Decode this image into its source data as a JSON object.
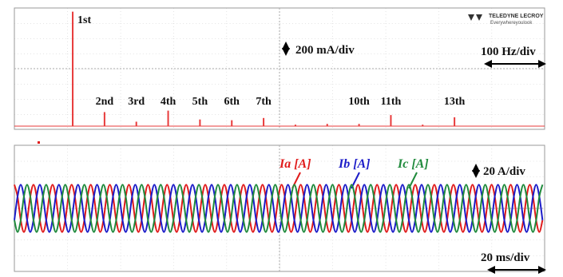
{
  "logo": {
    "brand": "TELEDYNE LECROY",
    "tagline": "Everywhereyoulook"
  },
  "chart_data": [
    {
      "type": "bar",
      "y_scale": "200 mA/div",
      "x_scale": "100 Hz/div",
      "color": "#e83a3a",
      "categories": [
        "1st",
        "2nd",
        "3rd",
        "4th",
        "5th",
        "6th",
        "7th",
        null,
        null,
        "10th",
        "11th",
        null,
        "13th"
      ],
      "x": [
        60,
        120,
        180,
        240,
        300,
        360,
        420,
        480,
        540,
        600,
        660,
        720,
        780
      ],
      "values": [
        1550,
        190,
        60,
        210,
        90,
        80,
        110,
        20,
        30,
        30,
        150,
        20,
        120
      ],
      "xlim": [
        -50,
        950
      ],
      "ylim": [
        0,
        1600
      ]
    },
    {
      "type": "line",
      "y_scale": "20 A/div",
      "x_scale": "20 ms/div",
      "xlim": [
        0,
        200
      ],
      "ylim": [
        -80,
        80
      ],
      "x": [
        0,
        1.2,
        2.4,
        3.6,
        4.8,
        6,
        7.2,
        8.4,
        9.6,
        10.8,
        12,
        13.2,
        14.4,
        15.6,
        16.8,
        18,
        19.2,
        20.4,
        21.6,
        22.8,
        24,
        25.2,
        26.4,
        27.6,
        28.8,
        30,
        31.2,
        32.4,
        33.6,
        34.8,
        36,
        37.2,
        38.4,
        39.6,
        40.8,
        42,
        43.2,
        44.4,
        45.6,
        46.8,
        48,
        49.2,
        50.4,
        51.6,
        52.8,
        54,
        55.2,
        56.4,
        57.6,
        58.8,
        60,
        61.2,
        62.4,
        63.6,
        64.8,
        66,
        67.2,
        68.4,
        69.6,
        70.8,
        72,
        73.2,
        74.4,
        75.6,
        76.8,
        78,
        79.2,
        80.4,
        81.6,
        82.8,
        84,
        85.2,
        86.4,
        87.6,
        88.8,
        90,
        91.2,
        92.4,
        93.6,
        94.8,
        96,
        97.2,
        98.4,
        99.6,
        100.8,
        102,
        103.2,
        104.4,
        105.6,
        106.8,
        108,
        109.2,
        110.4,
        111.6,
        112.8,
        114,
        115.2,
        116.4,
        117.6,
        118.8,
        120,
        121.2,
        122.4,
        123.6,
        124.8,
        126,
        127.2,
        128.4,
        129.6,
        130.8,
        132,
        133.2,
        134.4,
        135.6,
        136.8,
        138,
        139.2,
        140.4,
        141.6,
        142.8,
        144,
        145.2,
        146.4,
        147.6,
        148.8,
        150,
        151.2,
        152.4,
        153.6,
        154.8,
        156,
        157.2,
        158.4,
        159.6,
        160.8,
        162,
        163.2,
        164.4,
        165.6,
        166.8,
        168,
        169.2,
        170.4,
        171.6,
        172.8,
        174,
        175.2,
        176.4,
        177.6,
        178.8,
        180,
        181.2,
        182.4,
        183.6,
        184.8,
        186,
        187.2,
        188.4,
        189.6,
        190.8,
        192,
        193.2,
        194.4,
        195.6,
        196.8,
        198,
        199.2
      ],
      "series": [
        {
          "name": "Ia [A]",
          "color": "#e01b1b",
          "values": [
            30,
            15,
            -15,
            -30,
            -15,
            15,
            30,
            15,
            -15,
            -30,
            -15,
            15,
            30,
            15,
            -15,
            -30,
            -15,
            15,
            30,
            15,
            -15,
            -30,
            -15,
            15,
            30,
            15,
            -15,
            -30,
            -15,
            15,
            30,
            15,
            -15,
            -30,
            -15,
            15,
            30,
            15,
            -15,
            -30,
            -15,
            15,
            30,
            15,
            -15,
            -30,
            -15,
            15,
            30,
            15,
            -15,
            -30,
            -15,
            15,
            30,
            15,
            -15,
            -30,
            -15,
            15,
            30,
            15,
            -15,
            -30,
            -15,
            15,
            30,
            15,
            -15,
            -30,
            -15,
            15,
            30,
            15,
            -15,
            -30,
            -15,
            15,
            30,
            15,
            -15,
            -30,
            -15,
            15,
            30,
            15,
            -15,
            -30,
            -15,
            15,
            30,
            15,
            -15,
            -30,
            -15,
            15,
            30,
            15,
            -15,
            -30,
            -15,
            15,
            30,
            15,
            -15,
            -30,
            -15,
            15,
            30,
            15,
            -15,
            -30,
            -15,
            15,
            30,
            15,
            -15,
            -30,
            -15,
            15,
            30,
            15,
            -15,
            -30,
            -15,
            15,
            30,
            15,
            -15,
            -30,
            -15,
            15,
            30,
            15,
            -15,
            -30,
            -15,
            15,
            30,
            15,
            -15,
            -30,
            -15,
            15,
            30,
            15,
            -15,
            -30,
            -15,
            15,
            30,
            15,
            -15,
            -30,
            -15,
            15,
            30,
            15,
            -15,
            -30,
            -15,
            15,
            30,
            15,
            -15,
            -30,
            -15
          ]
        },
        {
          "name": "Ib [A]",
          "color": "#1c1cc8",
          "values": [
            -15,
            15,
            30,
            15,
            -15,
            -30,
            -15,
            15,
            30,
            15,
            -15,
            -30,
            -15,
            15,
            30,
            15,
            -15,
            -30,
            -15,
            15,
            30,
            15,
            -15,
            -30,
            -15,
            15,
            30,
            15,
            -15,
            -30,
            -15,
            15,
            30,
            15,
            -15,
            -30,
            -15,
            15,
            30,
            15,
            -15,
            -30,
            -15,
            15,
            30,
            15,
            -15,
            -30,
            -15,
            15,
            30,
            15,
            -15,
            -30,
            -15,
            15,
            30,
            15,
            -15,
            -30,
            -15,
            15,
            30,
            15,
            -15,
            -30,
            -15,
            15,
            30,
            15,
            -15,
            -30,
            -15,
            15,
            30,
            15,
            -15,
            -30,
            -15,
            15,
            30,
            15,
            -15,
            -30,
            -15,
            15,
            30,
            15,
            -15,
            -30,
            -15,
            15,
            30,
            15,
            -15,
            -30,
            -15,
            15,
            30,
            15,
            -15,
            -30,
            -15,
            15,
            30,
            15,
            -15,
            -30,
            -15,
            15,
            30,
            15,
            -15,
            -30,
            -15,
            15,
            30,
            15,
            -15,
            -30,
            -15,
            15,
            30,
            15,
            -15,
            -30,
            -15,
            15,
            30,
            15,
            -15,
            -30,
            -15,
            15,
            30,
            15,
            -15,
            -30,
            -15,
            15,
            30,
            15,
            -15,
            -30,
            -15,
            15,
            30,
            15,
            -15,
            -30,
            -15,
            15,
            30,
            15,
            -15,
            -30,
            -15,
            15,
            30,
            15,
            -15,
            -30,
            -15,
            15,
            30,
            15,
            -15
          ]
        },
        {
          "name": "Ic [A]",
          "color": "#1f8a3c",
          "values": [
            -15,
            -30,
            -15,
            15,
            30,
            15,
            -15,
            -30,
            -15,
            15,
            30,
            15,
            -15,
            -30,
            -15,
            15,
            30,
            15,
            -15,
            -30,
            -15,
            15,
            30,
            15,
            -15,
            -30,
            -15,
            15,
            30,
            15,
            -15,
            -30,
            -15,
            15,
            30,
            15,
            -15,
            -30,
            -15,
            15,
            30,
            15,
            -15,
            -30,
            -15,
            15,
            30,
            15,
            -15,
            -30,
            -15,
            15,
            30,
            15,
            -15,
            -30,
            -15,
            15,
            30,
            15,
            -15,
            -30,
            -15,
            15,
            30,
            15,
            -15,
            -30,
            -15,
            15,
            30,
            15,
            -15,
            -30,
            -15,
            15,
            30,
            15,
            -15,
            -30,
            -15,
            15,
            30,
            15,
            -15,
            -30,
            -15,
            15,
            30,
            15,
            -15,
            -30,
            -15,
            15,
            30,
            15,
            -15,
            -30,
            -15,
            15,
            30,
            15,
            -15,
            -30,
            -15,
            15,
            30,
            15,
            -15,
            -30,
            -15,
            15,
            30,
            15,
            -15,
            -30,
            -15,
            15,
            30,
            15,
            -15,
            -30,
            -15,
            15,
            30,
            15,
            -15,
            -30,
            -15,
            15,
            30,
            15,
            -15,
            -30,
            -15,
            15,
            30,
            15,
            -15,
            -30,
            -15,
            15,
            30,
            15,
            -15,
            -30,
            -15,
            15,
            30,
            15,
            -15,
            -30,
            -15,
            15,
            30,
            15,
            -15,
            -30,
            -15,
            15,
            30,
            15,
            -15,
            -30,
            -15,
            15,
            30
          ]
        }
      ]
    }
  ]
}
